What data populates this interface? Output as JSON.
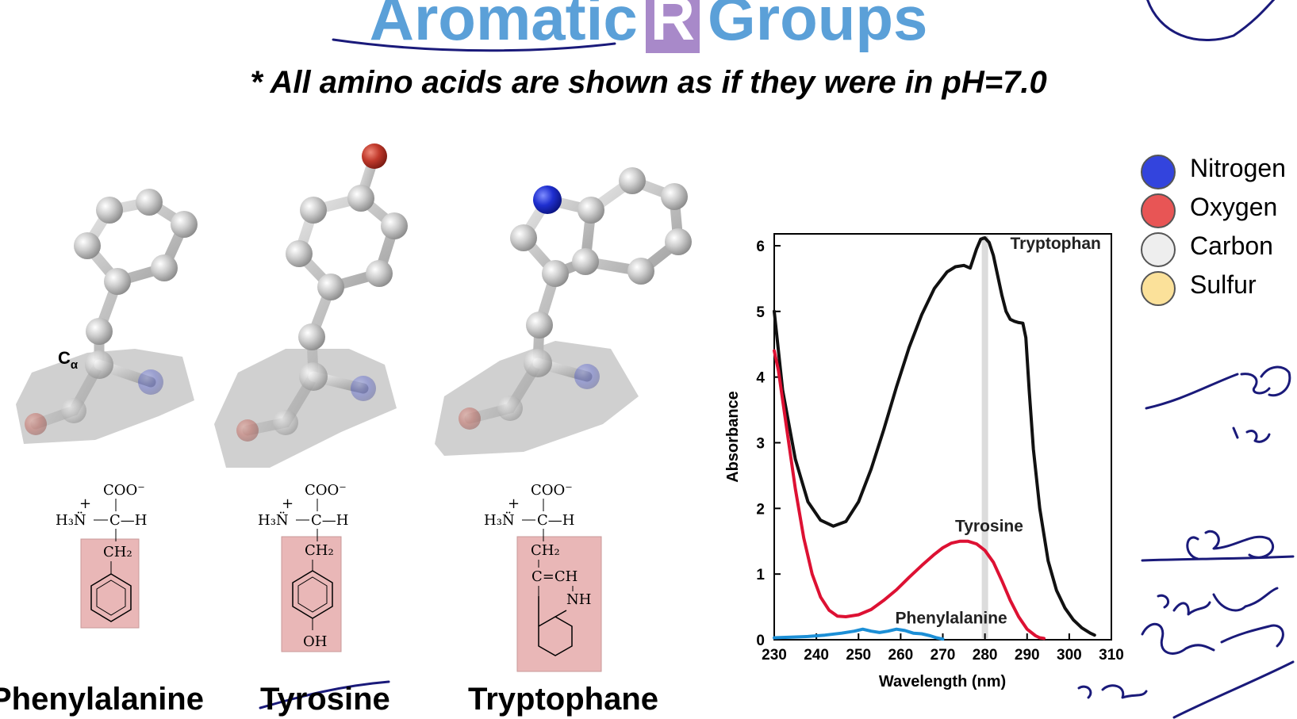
{
  "title": {
    "word1": "Aromatic",
    "r": "R",
    "word2": "Groups"
  },
  "subtitle": "* All amino acids are shown as if they were in pH=7.0",
  "amino_acids": [
    {
      "name": "Phenylalanine"
    },
    {
      "name": "Tyrosine"
    },
    {
      "name": "Tryptophane"
    }
  ],
  "structure_text": {
    "c_alpha": "C",
    "c_alpha_sub": "α",
    "coo": "COO⁻",
    "h3n": "H₃N̈",
    "plus": "+",
    "c_h": "C—H",
    "ch2": "CH₂",
    "oh": "OH",
    "ch_eq": "C=CH",
    "nh": "NH"
  },
  "legend": [
    {
      "label": "Nitrogen",
      "color": "#3344dd"
    },
    {
      "label": "Oxygen",
      "color": "#e85555"
    },
    {
      "label": "Carbon",
      "color": "#eeeeee"
    },
    {
      "label": "Sulfur",
      "color": "#fbe19a"
    }
  ],
  "chart_data": {
    "type": "line",
    "xlabel": "Wavelength (nm)",
    "ylabel": "Absorbance",
    "xlim": [
      230,
      310
    ],
    "ylim": [
      0,
      6
    ],
    "x_ticks": [
      230,
      240,
      250,
      260,
      270,
      280,
      290,
      300,
      310
    ],
    "y_ticks": [
      0,
      1,
      2,
      3,
      4,
      5,
      6
    ],
    "highlight_x": 280,
    "series": [
      {
        "name": "Tryptophan",
        "color": "#111111",
        "x": [
          230,
          232,
          235,
          238,
          241,
          244,
          247,
          250,
          253,
          256,
          259,
          262,
          265,
          268,
          271,
          273,
          275,
          276.5,
          278,
          279,
          280,
          281,
          282,
          283,
          284,
          285,
          286,
          287,
          288,
          289,
          289.7,
          290.5,
          291.5,
          293,
          295,
          297,
          299,
          301,
          303,
          305,
          306
        ],
        "y": [
          5.0,
          3.8,
          2.75,
          2.1,
          1.82,
          1.73,
          1.8,
          2.1,
          2.6,
          3.2,
          3.85,
          4.45,
          4.95,
          5.35,
          5.6,
          5.68,
          5.7,
          5.66,
          5.95,
          6.1,
          6.12,
          6.05,
          5.85,
          5.55,
          5.25,
          5.0,
          4.88,
          4.85,
          4.83,
          4.82,
          4.6,
          3.8,
          2.9,
          2.0,
          1.2,
          0.75,
          0.48,
          0.3,
          0.18,
          0.1,
          0.07
        ]
      },
      {
        "name": "Tyrosine",
        "color": "#dd1133",
        "x": [
          230,
          231,
          233,
          235,
          237,
          239,
          241,
          243,
          245,
          247,
          250,
          253,
          256,
          259,
          262,
          265,
          268,
          270,
          272,
          274,
          276,
          278,
          280,
          282,
          284,
          286,
          288,
          290,
          292,
          293,
          294
        ],
        "y": [
          4.4,
          4.1,
          3.2,
          2.3,
          1.55,
          1.0,
          0.65,
          0.45,
          0.36,
          0.35,
          0.38,
          0.46,
          0.6,
          0.76,
          0.95,
          1.13,
          1.3,
          1.4,
          1.47,
          1.5,
          1.5,
          1.46,
          1.36,
          1.18,
          0.9,
          0.6,
          0.35,
          0.16,
          0.06,
          0.03,
          0.02
        ]
      },
      {
        "name": "Phenylalanine",
        "color": "#1c8fd6",
        "x": [
          230,
          234,
          238,
          242,
          246,
          249,
          251,
          253,
          255,
          257,
          259,
          261,
          263,
          265,
          267,
          268.5,
          270
        ],
        "y": [
          0.03,
          0.04,
          0.05,
          0.07,
          0.1,
          0.13,
          0.16,
          0.13,
          0.11,
          0.13,
          0.16,
          0.14,
          0.1,
          0.09,
          0.06,
          0.03,
          0.01
        ]
      }
    ]
  }
}
